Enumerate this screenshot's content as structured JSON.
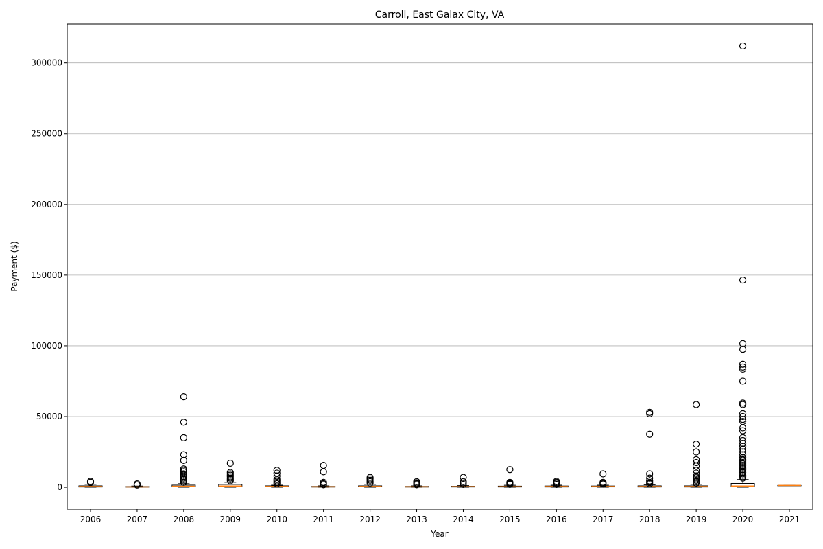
{
  "chart_data": {
    "type": "box",
    "title": "Carroll, East Galax City, VA",
    "xlabel": "Year",
    "ylabel": "Payment ($)",
    "categories": [
      "2006",
      "2007",
      "2008",
      "2009",
      "2010",
      "2011",
      "2012",
      "2013",
      "2014",
      "2015",
      "2016",
      "2017",
      "2018",
      "2019",
      "2020",
      "2021"
    ],
    "ylim": [
      -15500,
      327500
    ],
    "yticks": [
      0,
      50000,
      100000,
      150000,
      200000,
      250000,
      300000
    ],
    "grid": "y",
    "boxes": [
      {
        "year": "2006",
        "whislo": 0,
        "q1": 200,
        "median": 500,
        "q3": 1000,
        "whishi": 2000,
        "fliers": [
          3500,
          4200
        ]
      },
      {
        "year": "2007",
        "whislo": 0,
        "q1": 100,
        "median": 250,
        "q3": 500,
        "whishi": 900,
        "fliers": [
          1600,
          2400
        ]
      },
      {
        "year": "2008",
        "whislo": 0,
        "q1": 300,
        "median": 700,
        "q3": 1500,
        "whishi": 2500,
        "fliers": [
          3500,
          4500,
          5500,
          6500,
          7500,
          8500,
          9500,
          11000,
          12000,
          13000,
          19000,
          23000,
          35000,
          46000,
          64000
        ]
      },
      {
        "year": "2009",
        "whislo": 0,
        "q1": 400,
        "median": 900,
        "q3": 2000,
        "whishi": 3500,
        "fliers": [
          4500,
          5500,
          6500,
          7500,
          8500,
          9500,
          10500,
          17000
        ]
      },
      {
        "year": "2010",
        "whislo": 0,
        "q1": 300,
        "median": 600,
        "q3": 1000,
        "whishi": 1500,
        "fliers": [
          2500,
          3500,
          4500,
          5500,
          8000,
          10000,
          12000
        ]
      },
      {
        "year": "2011",
        "whislo": 0,
        "q1": 150,
        "median": 300,
        "q3": 600,
        "whishi": 1000,
        "fliers": [
          1800,
          2500,
          3500,
          11000,
          15500
        ]
      },
      {
        "year": "2012",
        "whislo": 0,
        "q1": 300,
        "median": 600,
        "q3": 1000,
        "whishi": 2000,
        "fliers": [
          3000,
          4000,
          5000,
          6000,
          7000
        ]
      },
      {
        "year": "2013",
        "whislo": 0,
        "q1": 150,
        "median": 300,
        "q3": 600,
        "whishi": 1000,
        "fliers": [
          1800,
          2500,
          3200,
          4000
        ]
      },
      {
        "year": "2014",
        "whislo": 0,
        "q1": 200,
        "median": 400,
        "q3": 700,
        "whishi": 1200,
        "fliers": [
          2000,
          3000,
          4000,
          7000
        ]
      },
      {
        "year": "2015",
        "whislo": 0,
        "q1": 200,
        "median": 400,
        "q3": 800,
        "whishi": 1400,
        "fliers": [
          2000,
          2500,
          3000,
          3500,
          12500
        ]
      },
      {
        "year": "2016",
        "whislo": 0,
        "q1": 200,
        "median": 500,
        "q3": 900,
        "whishi": 1500,
        "fliers": [
          2000,
          2800,
          3500,
          4200
        ]
      },
      {
        "year": "2017",
        "whislo": 0,
        "q1": 250,
        "median": 500,
        "q3": 900,
        "whishi": 1500,
        "fliers": [
          2200,
          2800,
          3500,
          9500
        ]
      },
      {
        "year": "2018",
        "whislo": 0,
        "q1": 200,
        "median": 500,
        "q3": 1000,
        "whishi": 1800,
        "fliers": [
          2500,
          3500,
          4500,
          6500,
          9500,
          37500,
          52000,
          53000
        ]
      },
      {
        "year": "2019",
        "whislo": 0,
        "q1": 200,
        "median": 500,
        "q3": 1000,
        "whishi": 2000,
        "fliers": [
          3000,
          4000,
          5000,
          6000,
          7000,
          8000,
          10000,
          12000,
          15000,
          17500,
          19500,
          25000,
          30500,
          58500
        ]
      },
      {
        "year": "2020",
        "whislo": 0,
        "q1": 400,
        "median": 900,
        "q3": 2700,
        "whishi": 5500,
        "fliers": [
          6500,
          7500,
          8500,
          9500,
          10500,
          11500,
          12500,
          13500,
          14500,
          15500,
          16500,
          17500,
          18500,
          19500,
          21000,
          23000,
          25000,
          27000,
          29000,
          31000,
          33000,
          35000,
          40000,
          42000,
          46500,
          48000,
          50000,
          52000,
          58500,
          59500,
          75000,
          83500,
          85000,
          87000,
          97500,
          101500,
          146500,
          312000
        ]
      },
      {
        "year": "2021",
        "whislo": 1300,
        "q1": 1300,
        "median": 1300,
        "q3": 1300,
        "whishi": 1300,
        "fliers": []
      }
    ],
    "colors": {
      "box": "#000000",
      "median": "#ff7f0e",
      "grid": "#b0b0b0"
    }
  }
}
